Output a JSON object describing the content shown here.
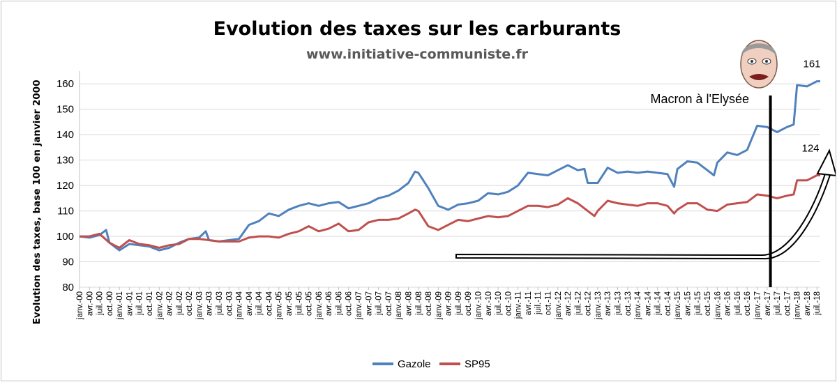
{
  "chart_data": {
    "type": "line",
    "title": "Evolution des taxes sur les carburants",
    "subtitle": "www.initiative-communiste.fr",
    "ylabel": "Evolution des taxes, base 100 en janvier 2000",
    "xlabel": "",
    "ylim": [
      80,
      165
    ],
    "yticks": [
      80,
      90,
      100,
      110,
      120,
      130,
      140,
      150,
      160
    ],
    "grid": "horizontal",
    "legend_position": "bottom",
    "x_tick_labels": [
      "janv.-00",
      "avr.-00",
      "juil.-00",
      "oct.-00",
      "janv.-01",
      "avr.-01",
      "juil.-01",
      "oct.-01",
      "janv.-02",
      "avr.-02",
      "juil.-02",
      "oct.-02",
      "janv.-03",
      "avr.-03",
      "juil.-03",
      "oct.-03",
      "janv.-04",
      "avr.-04",
      "juil.-04",
      "oct.-04",
      "janv.-05",
      "avr.-05",
      "juil.-05",
      "oct.-05",
      "janv.-06",
      "avr.-06",
      "juil.-06",
      "oct.-06",
      "janv.-07",
      "avr.-07",
      "juil.-07",
      "oct.-07",
      "janv.-08",
      "avr.-08",
      "juil.-08",
      "oct.-08",
      "janv.-09",
      "avr.-09",
      "juil.-09",
      "oct.-09",
      "janv.-10",
      "avr.-10",
      "juil.-10",
      "oct.-10",
      "janv.-11",
      "avr.-11",
      "juil.-11",
      "oct.-11",
      "janv.-12",
      "avr.-12",
      "juil.-12",
      "oct.-12",
      "janv.-13",
      "avr.-13",
      "juil.-13",
      "oct.-13",
      "janv.-14",
      "avr.-14",
      "juil.-14",
      "oct.-14",
      "janv.-15",
      "avr.-15",
      "juil.-15",
      "oct.-15",
      "janv.-16",
      "avr.-16",
      "juil.-16",
      "oct.-16",
      "janv.-17",
      "avr.-17",
      "juil.-17",
      "oct.-17",
      "janv.-18",
      "avr.-18",
      "juil.-18"
    ],
    "series": [
      {
        "name": "Gazole",
        "color": "#4f81bd",
        "points": [
          [
            "janv.-00",
            100
          ],
          [
            "avr.-00",
            99.5
          ],
          [
            "juil.-00",
            100.5
          ],
          [
            "sept.-00",
            102.5
          ],
          [
            "oct.-00",
            97.5
          ],
          [
            "janv.-01",
            94.5
          ],
          [
            "avr.-01",
            97
          ],
          [
            "juil.-01",
            96.5
          ],
          [
            "oct.-01",
            96
          ],
          [
            "janv.-02",
            94.5
          ],
          [
            "avr.-02",
            95.5
          ],
          [
            "juil.-02",
            97.5
          ],
          [
            "oct.-02",
            99
          ],
          [
            "janv.-03",
            99.5
          ],
          [
            "mars-03",
            102
          ],
          [
            "avr.-03",
            98.5
          ],
          [
            "juil.-03",
            98
          ],
          [
            "oct.-03",
            98.5
          ],
          [
            "janv.-04",
            99
          ],
          [
            "avr.-04",
            104.5
          ],
          [
            "juil.-04",
            106
          ],
          [
            "oct.-04",
            109
          ],
          [
            "janv.-05",
            108
          ],
          [
            "avr.-05",
            110.5
          ],
          [
            "juil.-05",
            112
          ],
          [
            "oct.-05",
            113
          ],
          [
            "janv.-06",
            112
          ],
          [
            "avr.-06",
            113
          ],
          [
            "juil.-06",
            113.5
          ],
          [
            "oct.-06",
            111
          ],
          [
            "janv.-07",
            112
          ],
          [
            "avr.-07",
            113
          ],
          [
            "juil.-07",
            115
          ],
          [
            "oct.-07",
            116
          ],
          [
            "janv.-08",
            118
          ],
          [
            "avr.-08",
            121
          ],
          [
            "juin-08",
            125.5
          ],
          [
            "juil.-08",
            125
          ],
          [
            "oct.-08",
            119
          ],
          [
            "janv.-09",
            112
          ],
          [
            "avr.-09",
            110.5
          ],
          [
            "juil.-09",
            112.5
          ],
          [
            "oct.-09",
            113
          ],
          [
            "janv.-10",
            114
          ],
          [
            "avr.-10",
            117
          ],
          [
            "juil.-10",
            116.5
          ],
          [
            "oct.-10",
            117.5
          ],
          [
            "janv.-11",
            120
          ],
          [
            "avr.-11",
            125
          ],
          [
            "juil.-11",
            124.5
          ],
          [
            "oct.-11",
            124
          ],
          [
            "janv.-12",
            126
          ],
          [
            "avr.-12",
            128
          ],
          [
            "juil.-12",
            126
          ],
          [
            "sept.-12",
            126.5
          ],
          [
            "oct.-12",
            121
          ],
          [
            "janv.-13",
            121
          ],
          [
            "avr.-13",
            127
          ],
          [
            "juil.-13",
            125
          ],
          [
            "oct.-13",
            125.5
          ],
          [
            "janv.-14",
            125
          ],
          [
            "avr.-14",
            125.5
          ],
          [
            "juil.-14",
            125
          ],
          [
            "oct.-14",
            124.5
          ],
          [
            "déc.-14",
            119.5
          ],
          [
            "janv.-15",
            126.5
          ],
          [
            "avr.-15",
            129.5
          ],
          [
            "juil.-15",
            129
          ],
          [
            "oct.-15",
            126
          ],
          [
            "déc.-15",
            124
          ],
          [
            "janv.-16",
            129
          ],
          [
            "avr.-16",
            133
          ],
          [
            "juil.-16",
            132
          ],
          [
            "oct.-16",
            134
          ],
          [
            "janv.-17",
            143.5
          ],
          [
            "avr.-17",
            143
          ],
          [
            "juil.-17",
            141
          ],
          [
            "oct.-17",
            143
          ],
          [
            "déc.-17",
            144
          ],
          [
            "janv.-18",
            159.5
          ],
          [
            "avr.-18",
            159
          ],
          [
            "juil.-18",
            161
          ],
          [
            "août-18",
            161
          ]
        ]
      },
      {
        "name": "SP95",
        "color": "#c0504d",
        "points": [
          [
            "janv.-00",
            100
          ],
          [
            "avr.-00",
            100
          ],
          [
            "juil.-00",
            101
          ],
          [
            "oct.-00",
            97.5
          ],
          [
            "janv.-01",
            95.5
          ],
          [
            "avr.-01",
            98.5
          ],
          [
            "juil.-01",
            97
          ],
          [
            "oct.-01",
            96.5
          ],
          [
            "janv.-02",
            95.5
          ],
          [
            "avr.-02",
            96.5
          ],
          [
            "juil.-02",
            97
          ],
          [
            "oct.-02",
            99
          ],
          [
            "janv.-03",
            99
          ],
          [
            "avr.-03",
            98.5
          ],
          [
            "juil.-03",
            98
          ],
          [
            "oct.-03",
            98
          ],
          [
            "janv.-04",
            98
          ],
          [
            "avr.-04",
            99.5
          ],
          [
            "juil.-04",
            100
          ],
          [
            "oct.-04",
            100
          ],
          [
            "janv.-05",
            99.5
          ],
          [
            "avr.-05",
            101
          ],
          [
            "juil.-05",
            102
          ],
          [
            "oct.-05",
            104
          ],
          [
            "janv.-06",
            102
          ],
          [
            "avr.-06",
            103
          ],
          [
            "juil.-06",
            105
          ],
          [
            "oct.-06",
            102
          ],
          [
            "janv.-07",
            102.5
          ],
          [
            "avr.-07",
            105.5
          ],
          [
            "juil.-07",
            106.5
          ],
          [
            "oct.-07",
            106.5
          ],
          [
            "janv.-08",
            107
          ],
          [
            "avr.-08",
            109
          ],
          [
            "juin-08",
            110.5
          ],
          [
            "juil.-08",
            110
          ],
          [
            "oct.-08",
            104
          ],
          [
            "janv.-09",
            102.5
          ],
          [
            "avr.-09",
            104.5
          ],
          [
            "juil.-09",
            106.5
          ],
          [
            "oct.-09",
            106
          ],
          [
            "janv.-10",
            107
          ],
          [
            "avr.-10",
            108
          ],
          [
            "juil.-10",
            107.5
          ],
          [
            "oct.-10",
            108
          ],
          [
            "janv.-11",
            110
          ],
          [
            "avr.-11",
            112
          ],
          [
            "juil.-11",
            112
          ],
          [
            "oct.-11",
            111.5
          ],
          [
            "janv.-12",
            112.5
          ],
          [
            "avr.-12",
            115
          ],
          [
            "juil.-12",
            113
          ],
          [
            "oct.-12",
            110
          ],
          [
            "déc.-12",
            108
          ],
          [
            "janv.-13",
            110
          ],
          [
            "avr.-13",
            114
          ],
          [
            "juil.-13",
            113
          ],
          [
            "oct.-13",
            112.5
          ],
          [
            "janv.-14",
            112
          ],
          [
            "avr.-14",
            113
          ],
          [
            "juil.-14",
            113
          ],
          [
            "oct.-14",
            112
          ],
          [
            "déc.-14",
            109
          ],
          [
            "janv.-15",
            110.5
          ],
          [
            "avr.-15",
            113
          ],
          [
            "juil.-15",
            113
          ],
          [
            "oct.-15",
            110.5
          ],
          [
            "janv.-16",
            110
          ],
          [
            "avr.-16",
            112.5
          ],
          [
            "juil.-16",
            113
          ],
          [
            "oct.-16",
            113.5
          ],
          [
            "janv.-17",
            116.5
          ],
          [
            "avr.-17",
            116
          ],
          [
            "juil.-17",
            115
          ],
          [
            "oct.-17",
            116
          ],
          [
            "déc.-17",
            116.5
          ],
          [
            "janv.-18",
            122
          ],
          [
            "avr.-18",
            122
          ],
          [
            "juil.-18",
            124
          ],
          [
            "août-18",
            124
          ]
        ]
      }
    ],
    "annotations": {
      "macron_label": "Macron à l'Elysée",
      "macron_date": "mai-17",
      "gazole_end_label": "161",
      "sp95_end_label": "124"
    }
  }
}
